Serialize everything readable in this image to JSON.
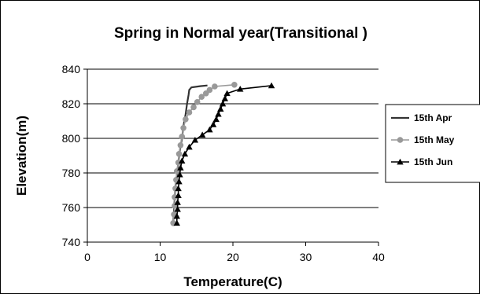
{
  "chart_data": {
    "type": "line",
    "title": "Spring in Normal year(Transitional )",
    "xlabel": "Temperature(C)",
    "ylabel": "Elevation(m)",
    "xlim": [
      0,
      40
    ],
    "ylim": [
      740,
      840
    ],
    "xticks": [
      "0",
      "10",
      "20",
      "30",
      "40"
    ],
    "yticks": [
      "740",
      "760",
      "780",
      "800",
      "820",
      "840"
    ],
    "grid": "horizontal",
    "legend_position": "right",
    "series": [
      {
        "name": "15th Apr",
        "color": "#333333",
        "marker": "none",
        "points": [
          [
            11.8,
            751
          ],
          [
            11.9,
            758
          ],
          [
            12.0,
            765
          ],
          [
            12.1,
            772
          ],
          [
            12.3,
            779
          ],
          [
            12.5,
            786
          ],
          [
            12.7,
            793
          ],
          [
            13.0,
            800
          ],
          [
            13.2,
            807
          ],
          [
            13.5,
            814
          ],
          [
            13.7,
            820
          ],
          [
            13.9,
            825
          ],
          [
            14.0,
            828
          ],
          [
            14.3,
            829.5
          ],
          [
            15.5,
            830.2
          ],
          [
            16.5,
            830.6
          ]
        ]
      },
      {
        "name": "15th May",
        "color": "#999999",
        "marker": "circle",
        "points": [
          [
            11.8,
            751
          ],
          [
            11.9,
            756
          ],
          [
            12.0,
            761
          ],
          [
            12.0,
            766
          ],
          [
            12.1,
            771
          ],
          [
            12.2,
            776
          ],
          [
            12.3,
            781
          ],
          [
            12.5,
            786
          ],
          [
            12.6,
            791
          ],
          [
            12.8,
            796
          ],
          [
            13.0,
            801
          ],
          [
            13.2,
            806
          ],
          [
            13.5,
            811
          ],
          [
            14.0,
            815
          ],
          [
            14.6,
            818
          ],
          [
            15.1,
            821
          ],
          [
            15.7,
            824
          ],
          [
            16.3,
            826
          ],
          [
            16.8,
            828
          ],
          [
            17.5,
            830
          ],
          [
            20.2,
            831
          ]
        ]
      },
      {
        "name": "15th Jun",
        "color": "#000000",
        "marker": "triangle",
        "points": [
          [
            12.3,
            751
          ],
          [
            12.3,
            755
          ],
          [
            12.4,
            759
          ],
          [
            12.4,
            763
          ],
          [
            12.5,
            767
          ],
          [
            12.5,
            771
          ],
          [
            12.6,
            775
          ],
          [
            12.7,
            779
          ],
          [
            12.8,
            783
          ],
          [
            13.0,
            787
          ],
          [
            13.4,
            791
          ],
          [
            14.0,
            795
          ],
          [
            14.8,
            799
          ],
          [
            15.8,
            802
          ],
          [
            16.8,
            805
          ],
          [
            17.3,
            808
          ],
          [
            17.7,
            811
          ],
          [
            18.0,
            814
          ],
          [
            18.3,
            817
          ],
          [
            18.6,
            820
          ],
          [
            18.9,
            823
          ],
          [
            19.2,
            826
          ],
          [
            21.0,
            828.5
          ],
          [
            25.3,
            830.5
          ]
        ]
      }
    ]
  }
}
